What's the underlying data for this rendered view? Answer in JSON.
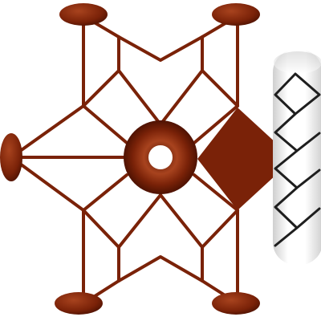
{
  "colors": {
    "background": "#ffffff",
    "structure": "#7a2208",
    "structure_light": "#a8431e",
    "structure_dark": "#4e1202",
    "rod_light": "#ffffff",
    "rod_shade": "#cfcfcf",
    "zigzag": "#1e1e1e"
  },
  "components": {
    "top_left_disc": {
      "shape": "ellipse",
      "icon": "oval-disc-icon"
    },
    "top_right_disc": {
      "shape": "ellipse",
      "icon": "oval-disc-icon"
    },
    "bottom_left_disc": {
      "shape": "ellipse",
      "icon": "oval-disc-icon"
    },
    "bottom_right_disc": {
      "shape": "ellipse",
      "icon": "oval-disc-icon"
    },
    "left_disc": {
      "shape": "ellipse",
      "icon": "oval-disc-icon"
    },
    "center_ring": {
      "shape": "torus",
      "icon": "ring-icon"
    },
    "diamond": {
      "shape": "diamond",
      "icon": "diamond-icon"
    },
    "cylinder": {
      "shape": "cylinder",
      "icon": "cylinder-icon",
      "pattern": "zigzag"
    }
  }
}
